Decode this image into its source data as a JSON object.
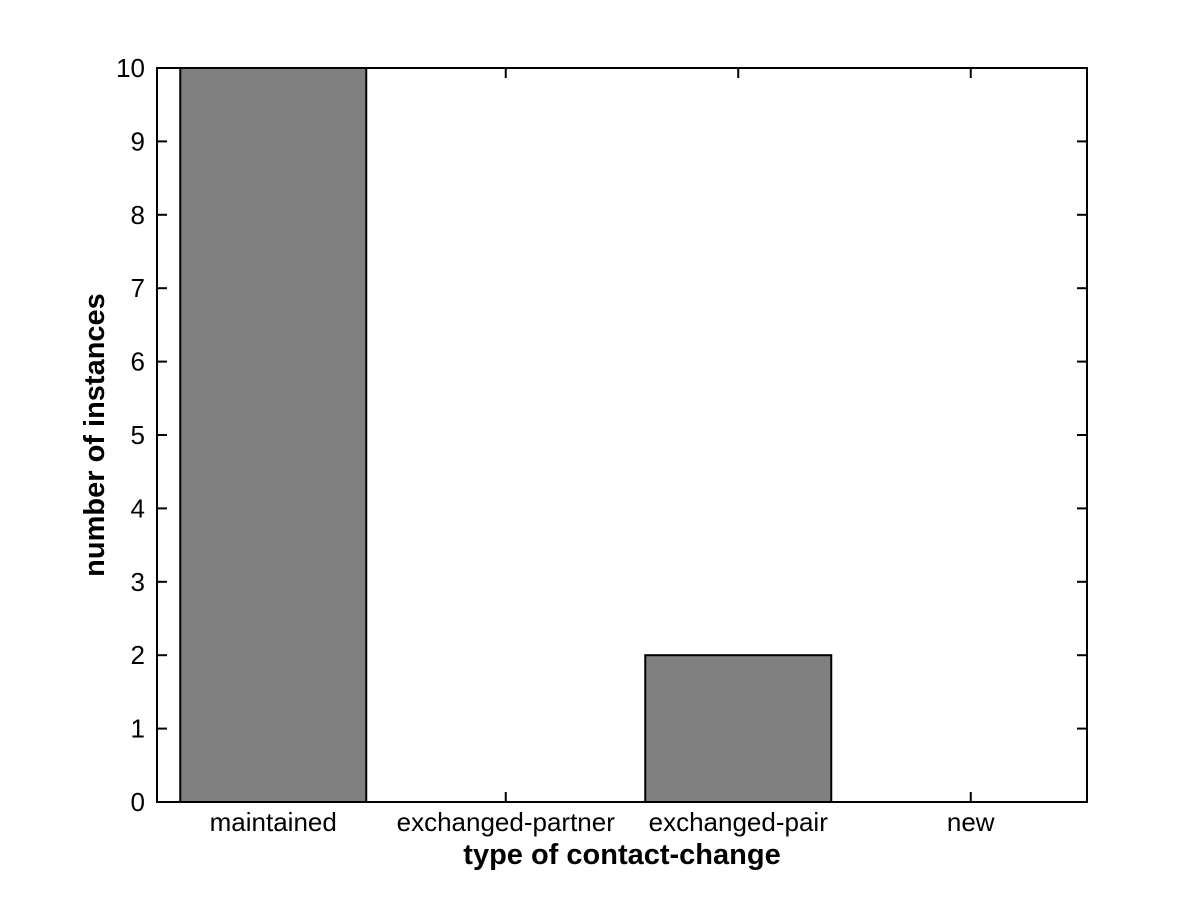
{
  "figure": {
    "background": "#ffffff"
  },
  "chart_data": {
    "type": "bar",
    "title": "",
    "categories": [
      "maintained",
      "exchanged-partner",
      "exchanged-pair",
      "new"
    ],
    "values": [
      10,
      0,
      2,
      0
    ],
    "xlabel": "type of contact-change",
    "ylabel": "number of instances",
    "ylim": [
      0,
      10
    ],
    "ytick_labels": [
      "0",
      "1",
      "2",
      "3",
      "4",
      "5",
      "6",
      "7",
      "8",
      "9",
      "10"
    ],
    "ytick_values": [
      0,
      1,
      2,
      3,
      4,
      5,
      6,
      7,
      8,
      9,
      10
    ],
    "bar_width_fraction": 0.8,
    "bar_color": "#808080",
    "bar_edge_color": "#000000",
    "axis_color": "#000000",
    "tick_direction": "in",
    "grid": false,
    "box": true,
    "legend": "none"
  }
}
